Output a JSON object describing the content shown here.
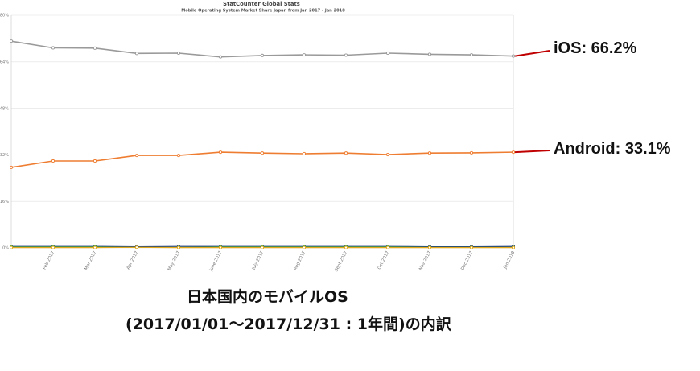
{
  "chart_data": {
    "type": "line",
    "title": "StatCounter Global Stats",
    "subtitle": "Mobile Operating System Market Share Japan from Jan 2017 - Jan 2018",
    "xlabel": "",
    "ylabel": "",
    "categories": [
      "",
      "Feb 2017",
      "Mar 2017",
      "Apr 2017",
      "May 2017",
      "June 2017",
      "July 2017",
      "Aug 2017",
      "Sept 2017",
      "Oct 2017",
      "Nov 2017",
      "Dec 2017",
      "Jan 2018"
    ],
    "ylim": [
      0,
      80
    ],
    "y_ticks": [
      0,
      16,
      32,
      48,
      64,
      80
    ],
    "y_tick_labels": [
      "0%",
      "16%",
      "32%",
      "48%",
      "64%",
      "80%"
    ],
    "grid": true,
    "legend": "none",
    "annotation_line_color": "#c00000",
    "series": [
      {
        "annotation": "iOS: 66.2%",
        "color": "#9a9a9a",
        "values": [
          71.1,
          68.8,
          68.7,
          66.9,
          67.0,
          65.7,
          66.2,
          66.4,
          66.3,
          67.0,
          66.6,
          66.4,
          66.0
        ]
      },
      {
        "annotation": "Android: 33.1%",
        "color": "#ee7d31",
        "values": [
          27.7,
          29.9,
          29.9,
          31.8,
          31.8,
          32.9,
          32.6,
          32.4,
          32.6,
          32.1,
          32.6,
          32.7,
          32.9
        ]
      },
      {
        "color": "#1f3380",
        "values": [
          0.5,
          0.5,
          0.5,
          0.4,
          0.5,
          0.5,
          0.5,
          0.5,
          0.5,
          0.5,
          0.4,
          0.4,
          0.5
        ]
      },
      {
        "color": "#4aa84a",
        "values": [
          0.3,
          0.3,
          0.3,
          0.2,
          0.2,
          0.3,
          0.3,
          0.3,
          0.3,
          0.3,
          0.2,
          0.2,
          0.2
        ]
      },
      {
        "color": "#e3a81c",
        "values": [
          0.1,
          0.1,
          0.1,
          0.2,
          0.1,
          0.1,
          0.1,
          0.1,
          0.1,
          0.1,
          0.1,
          0.1,
          0.1
        ]
      }
    ]
  },
  "caption": {
    "line1": "日本国内のモバイルOS",
    "line2": "(2017/01/01〜2017/12/31 : 1年間)の内訳"
  }
}
